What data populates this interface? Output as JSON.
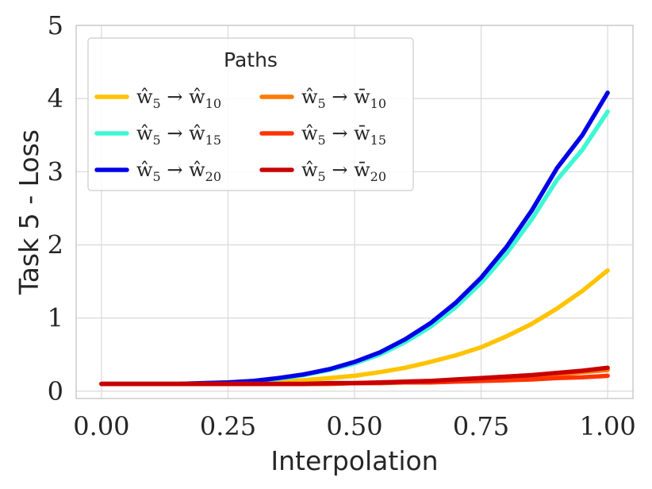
{
  "chart_data": {
    "type": "line",
    "xlabel": "Interpolation",
    "ylabel": "Task 5 - Loss",
    "xlim": [
      -0.05,
      1.05
    ],
    "ylim": [
      -0.1,
      5.0
    ],
    "xticks": [
      "0.00",
      "0.25",
      "0.50",
      "0.75",
      "1.00"
    ],
    "xtick_values": [
      0.0,
      0.25,
      0.5,
      0.75,
      1.0
    ],
    "yticks": [
      "0",
      "1",
      "2",
      "3",
      "4",
      "5"
    ],
    "ytick_values": [
      0,
      1,
      2,
      3,
      4,
      5
    ],
    "grid": true,
    "legend": {
      "title": "Paths",
      "placement": "top-left",
      "columns": 2
    },
    "x": [
      0.0,
      0.05,
      0.1,
      0.15,
      0.2,
      0.25,
      0.3,
      0.35,
      0.4,
      0.45,
      0.5,
      0.55,
      0.6,
      0.65,
      0.7,
      0.75,
      0.8,
      0.85,
      0.9,
      0.95,
      1.0
    ],
    "series": [
      {
        "name": "ŵ5 → ŵ10",
        "from": "ŵ",
        "from_sub": "5",
        "to": "ŵ",
        "to_sub": "10",
        "color": "#ffc300",
        "values": [
          0.1,
          0.1,
          0.1,
          0.1,
          0.1,
          0.11,
          0.12,
          0.13,
          0.15,
          0.18,
          0.21,
          0.26,
          0.32,
          0.4,
          0.49,
          0.6,
          0.75,
          0.92,
          1.13,
          1.37,
          1.65
        ]
      },
      {
        "name": "ŵ5 → ŵ15",
        "from": "ŵ",
        "from_sub": "5",
        "to": "ŵ",
        "to_sub": "15",
        "color": "#3ef7d4",
        "values": [
          0.1,
          0.1,
          0.1,
          0.1,
          0.11,
          0.12,
          0.14,
          0.17,
          0.22,
          0.29,
          0.38,
          0.5,
          0.67,
          0.88,
          1.15,
          1.48,
          1.88,
          2.35,
          2.89,
          3.3,
          3.82
        ]
      },
      {
        "name": "ŵ5 → ŵ20",
        "from": "ŵ",
        "from_sub": "5",
        "to": "ŵ",
        "to_sub": "20",
        "color": "#0000e6",
        "values": [
          0.1,
          0.1,
          0.1,
          0.1,
          0.11,
          0.12,
          0.14,
          0.18,
          0.23,
          0.3,
          0.4,
          0.53,
          0.71,
          0.93,
          1.21,
          1.55,
          1.97,
          2.47,
          3.05,
          3.5,
          4.08
        ]
      },
      {
        "name": "ŵ5 → w̄10",
        "from": "ŵ",
        "from_sub": "5",
        "to": "w̄",
        "to_sub": "10",
        "color": "#ff7a00",
        "values": [
          0.1,
          0.1,
          0.1,
          0.1,
          0.1,
          0.1,
          0.1,
          0.1,
          0.1,
          0.11,
          0.11,
          0.12,
          0.13,
          0.14,
          0.15,
          0.17,
          0.19,
          0.21,
          0.23,
          0.26,
          0.29
        ]
      },
      {
        "name": "ŵ5 → w̄15",
        "from": "ŵ",
        "from_sub": "5",
        "to": "w̄",
        "to_sub": "15",
        "color": "#ff3300",
        "values": [
          0.1,
          0.1,
          0.1,
          0.1,
          0.1,
          0.1,
          0.1,
          0.1,
          0.1,
          0.1,
          0.11,
          0.11,
          0.12,
          0.12,
          0.13,
          0.14,
          0.15,
          0.16,
          0.18,
          0.19,
          0.21
        ]
      },
      {
        "name": "ŵ5 → w̄20",
        "from": "ŵ",
        "from_sub": "5",
        "to": "w̄",
        "to_sub": "20",
        "color": "#c80000",
        "values": [
          0.1,
          0.1,
          0.1,
          0.1,
          0.1,
          0.1,
          0.1,
          0.1,
          0.1,
          0.11,
          0.11,
          0.12,
          0.13,
          0.14,
          0.16,
          0.18,
          0.2,
          0.22,
          0.25,
          0.28,
          0.32
        ]
      }
    ]
  }
}
